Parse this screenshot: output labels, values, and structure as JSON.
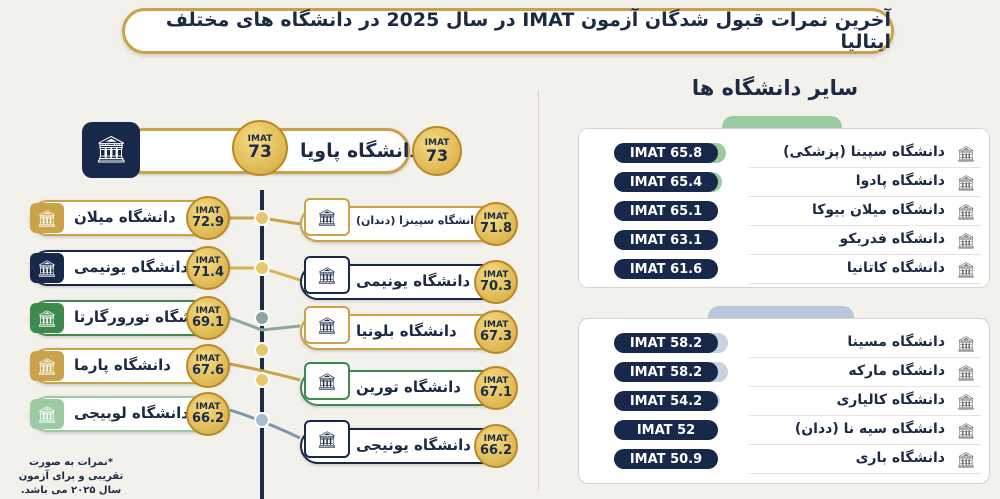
{
  "title": "آخرین نمرات قبول شدگان آزمون IMAT در سال 2025 در دانشگاه های مختلف ایتالیا",
  "right": {
    "heading": "سایر دانشگاه ها",
    "group1": [
      {
        "score": "IMAT 65.8",
        "name": "دانشگاه سپینا (پزشکی)",
        "icon": "microscope-icon",
        "level": 0.93
      },
      {
        "score": "IMAT 65.4",
        "name": "دانشگاه پادوا",
        "icon": "microscope-icon",
        "level": 0.9
      },
      {
        "score": "IMAT 65.1",
        "name": "دانشگاه میلان بیوکا",
        "icon": "x-box-icon",
        "level": 0.87
      },
      {
        "score": "IMAT 63.1",
        "name": "دانشگاه فدریکو",
        "icon": "caduceus-icon",
        "level": 0.8
      },
      {
        "score": "IMAT 61.6",
        "name": "دانشگاه کاتانیا",
        "icon": "lab-icon",
        "level": 0.75
      }
    ],
    "group2": [
      {
        "score": "IMAT 58.2",
        "name": "دانشگاه مسینا",
        "icon": "university-icon",
        "level": 0.95
      },
      {
        "score": "IMAT 58.2",
        "name": "دانشگاه مارکه",
        "icon": "leaf-icon",
        "level": 0.95
      },
      {
        "score": "IMAT 54.2",
        "name": "دانشگاه کالیاری",
        "icon": "building-icon",
        "level": 0.88
      },
      {
        "score": "IMAT 52",
        "name": "دانشگاه سیه نا (ددان)",
        "icon": "tooth-icon",
        "level": 0.84
      },
      {
        "score": "IMAT 50.9",
        "name": "دانشگاه باری",
        "icon": "building-icon",
        "level": 0.8
      }
    ]
  },
  "left": {
    "top": {
      "label": "IMAT",
      "score": "73",
      "name": "دانشگاه پاویا"
    },
    "leftItems": [
      {
        "label": "IMAT",
        "score": "72.9",
        "name": "دانشگاه میلان",
        "icon": "building-icon"
      },
      {
        "label": "IMAT",
        "score": "71.4",
        "name": "دانشگاه یونیمی",
        "icon": "building-icon"
      },
      {
        "label": "IMAT",
        "score": "69.1",
        "name": "دانشگاه تورورگارتا",
        "icon": "tooth-icon"
      },
      {
        "label": "IMAT",
        "score": "67.6",
        "name": "دانشگاه پارما",
        "icon": "building-icon"
      },
      {
        "label": "IMAT",
        "score": "66.2",
        "name": "دانشگاه لوبیجی",
        "icon": "microscope-icon"
      }
    ],
    "rightItems": [
      {
        "label": "IMAT",
        "score": "71.8",
        "name": "دانشگاه سپینزا (دندان)",
        "icon": "building-icon"
      },
      {
        "label": "IMAT",
        "score": "70.3",
        "name": "دانشگاه یونیمی",
        "icon": "certificate-icon"
      },
      {
        "label": "IMAT",
        "score": "67.3",
        "name": "دانشگاه بلونیا",
        "icon": "building-icon"
      },
      {
        "label": "IMAT",
        "score": "67.1",
        "name": "دانشگاه تورین",
        "icon": "building-icon"
      },
      {
        "label": "IMAT",
        "score": "66.2",
        "name": "دانشگاه یونیجی",
        "icon": "building-icon"
      }
    ],
    "note": "*نمرات به صورت تقریبی و برای آزمون سال ۲۰۲۵ می باشد."
  },
  "colors": {
    "navy": "#17284a",
    "gold": "#c9a24a",
    "green": "#9ccaa3",
    "blue": "#b6c8d9"
  }
}
